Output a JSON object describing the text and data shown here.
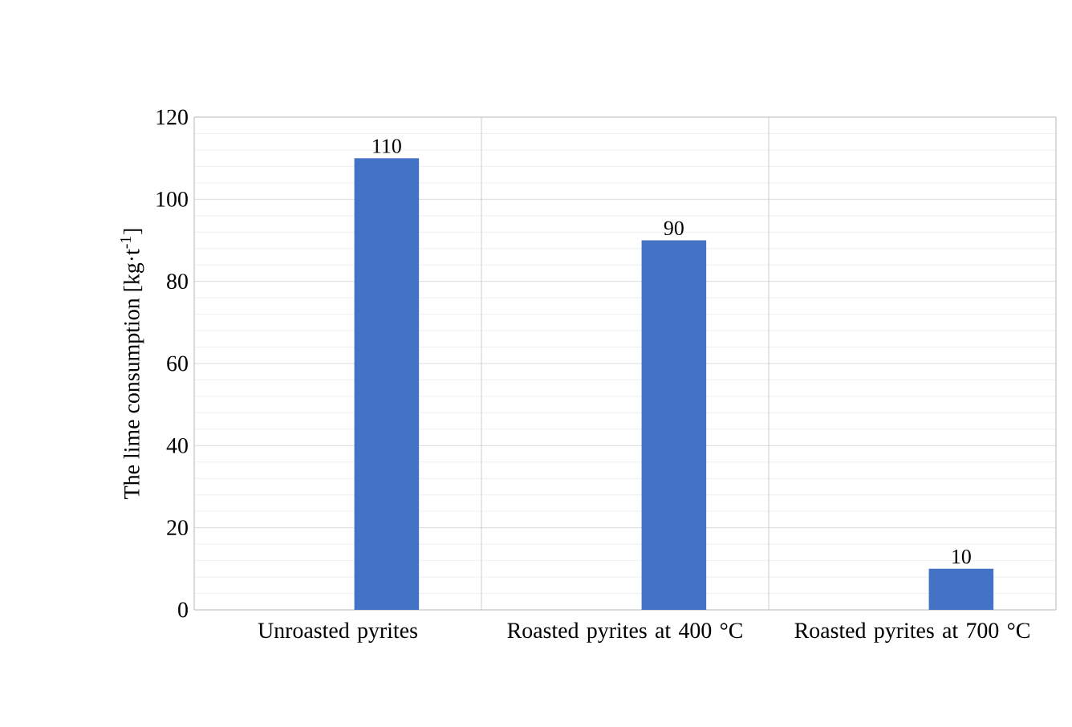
{
  "chart_data": {
    "type": "bar",
    "ylabel": "The lime consumption  [kg·t$^{-1}$]",
    "categories": [
      "Unroasted pyrites",
      "Roasted pyrites at 400 °C",
      "Roasted pyrites at 700 °C"
    ],
    "values": [
      110,
      90,
      10
    ],
    "color": "#4472c4",
    "data_labels": true,
    "ylim": [
      0,
      120
    ],
    "yticks": [
      0,
      20,
      40,
      60,
      80,
      100,
      120
    ],
    "grid": true
  }
}
